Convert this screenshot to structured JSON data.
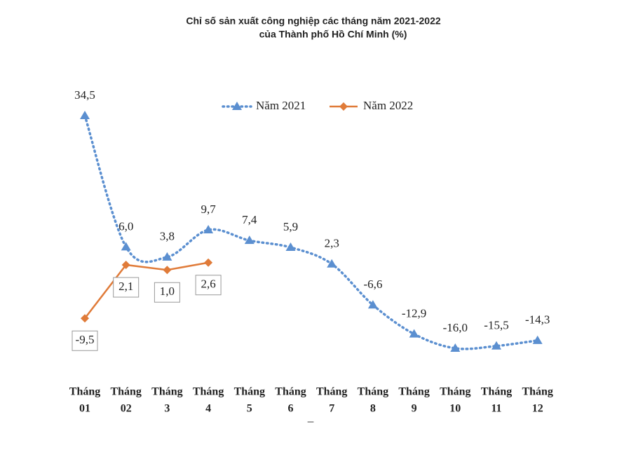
{
  "chart_data": {
    "type": "line",
    "title": "Chỉ số sản xuất công nghiệp các tháng năm 2021-2022",
    "subtitle": "của Thành phố Hồ Chí Minh (%)",
    "categories": [
      [
        "Tháng",
        "01"
      ],
      [
        "Tháng",
        "02"
      ],
      [
        "Tháng",
        "3"
      ],
      [
        "Tháng",
        "4"
      ],
      [
        "Tháng",
        "5"
      ],
      [
        "Tháng",
        "6"
      ],
      [
        "Tháng",
        "7"
      ],
      [
        "Tháng",
        "8"
      ],
      [
        "Tháng",
        "9"
      ],
      [
        "Tháng",
        "10"
      ],
      [
        "Tháng",
        "11"
      ],
      [
        "Tháng",
        "12"
      ]
    ],
    "series": [
      {
        "name": "Năm 2021",
        "color": "#5b8fd0",
        "style": "dotted",
        "marker": "triangle",
        "smooth": true,
        "values": [
          34.5,
          6.0,
          3.8,
          9.7,
          7.4,
          5.9,
          2.3,
          -6.6,
          -12.9,
          -16.0,
          -15.5,
          -14.3
        ],
        "value_labels": [
          "34,5",
          "6,0",
          "3,8",
          "9,7",
          "7,4",
          "5,9",
          "2,3",
          "-6,6",
          "-12,9",
          "-16,0",
          "-15,5",
          "-14,3"
        ]
      },
      {
        "name": "Năm 2022",
        "color": "#e07b39",
        "style": "solid",
        "marker": "diamond",
        "smooth": false,
        "values": [
          -9.5,
          2.1,
          1.0,
          2.6,
          null,
          null,
          null,
          null,
          null,
          null,
          null,
          null
        ],
        "value_labels": [
          "-9,5",
          "2,1",
          "1,0",
          "2,6",
          null,
          null,
          null,
          null,
          null,
          null,
          null,
          null
        ]
      }
    ],
    "note": "–"
  }
}
